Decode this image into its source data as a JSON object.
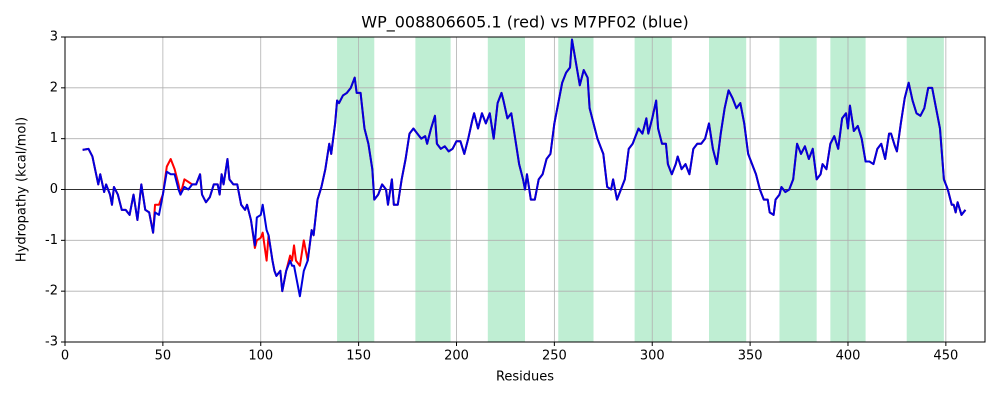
{
  "chart_data": {
    "type": "line",
    "title": "WP_008806605.1 (red) vs M7PF02 (blue)",
    "x_label": "Residues",
    "y_label": "Hydropathy (kcal/mol)",
    "xlim": [
      0,
      470
    ],
    "ylim": [
      -3,
      3
    ],
    "xticks": [
      0,
      50,
      100,
      150,
      200,
      250,
      300,
      350,
      400,
      450
    ],
    "yticks": [
      -3,
      -2,
      -1,
      0,
      1,
      2,
      3
    ],
    "grid": true,
    "span_color": "#bfeed3",
    "spans": [
      [
        139,
        158
      ],
      [
        179,
        197
      ],
      [
        216,
        235
      ],
      [
        252,
        270
      ],
      [
        291,
        310
      ],
      [
        329,
        348
      ],
      [
        365,
        384
      ],
      [
        391,
        409
      ],
      [
        430,
        449
      ]
    ],
    "x": [
      9,
      12,
      14,
      17,
      18,
      20,
      21,
      23,
      24,
      25,
      27,
      29,
      31,
      33,
      35,
      37,
      39,
      41,
      43,
      45,
      46,
      48,
      50,
      52,
      54,
      56,
      58,
      59,
      61,
      63,
      65,
      67,
      69,
      70,
      72,
      74,
      76,
      78,
      79,
      80,
      81,
      83,
      84,
      86,
      88,
      90,
      92,
      93,
      95,
      97,
      98,
      100,
      101,
      103,
      104,
      106,
      107,
      108,
      110,
      111,
      113,
      115,
      116,
      117,
      118,
      120,
      122,
      124,
      126,
      127,
      129,
      131,
      133,
      135,
      136,
      138,
      139,
      140,
      142,
      144,
      146,
      148,
      149,
      151,
      153,
      155,
      157,
      158,
      160,
      162,
      164,
      165,
      167,
      168,
      170,
      172,
      174,
      176,
      178,
      180,
      182,
      184,
      185,
      187,
      189,
      190,
      192,
      194,
      196,
      198,
      200,
      202,
      204,
      206,
      208,
      209,
      211,
      213,
      215,
      217,
      219,
      221,
      223,
      224,
      226,
      228,
      230,
      232,
      234,
      235,
      236,
      238,
      240,
      242,
      244,
      246,
      248,
      250,
      252,
      254,
      256,
      258,
      259,
      261,
      263,
      265,
      267,
      268,
      270,
      272,
      274,
      275,
      277,
      279,
      280,
      282,
      284,
      286,
      288,
      290,
      291,
      293,
      295,
      297,
      298,
      300,
      302,
      303,
      305,
      307,
      308,
      310,
      312,
      313,
      315,
      317,
      319,
      321,
      323,
      325,
      327,
      329,
      331,
      333,
      335,
      337,
      339,
      341,
      343,
      345,
      347,
      349,
      351,
      353,
      355,
      357,
      359,
      360,
      362,
      363,
      365,
      366,
      368,
      370,
      372,
      374,
      376,
      378,
      380,
      382,
      384,
      386,
      387,
      389,
      391,
      393,
      395,
      397,
      399,
      400,
      401,
      403,
      405,
      407,
      409,
      411,
      413,
      415,
      417,
      419,
      421,
      422,
      424,
      425,
      427,
      429,
      431,
      433,
      435,
      437,
      439,
      441,
      443,
      445,
      447,
      449,
      451,
      453,
      454,
      455,
      456,
      458,
      460
    ],
    "series": [
      {
        "color": "#ff0000",
        "values": [
          0.78,
          0.8,
          0.65,
          0.1,
          0.3,
          -0.05,
          0.1,
          -0.1,
          -0.3,
          0.05,
          -0.1,
          -0.4,
          -0.4,
          -0.5,
          -0.1,
          -0.6,
          0.1,
          -0.4,
          -0.45,
          -0.85,
          -0.3,
          -0.3,
          -0.1,
          0.45,
          0.6,
          0.4,
          0.1,
          -0.1,
          0.2,
          0.15,
          0.1,
          0.1,
          0.3,
          -0.1,
          -0.25,
          -0.15,
          0.1,
          0.1,
          -0.1,
          0.3,
          0.1,
          0.6,
          0.2,
          0.1,
          0.1,
          -0.3,
          -0.4,
          -0.3,
          -0.6,
          -1.15,
          -1,
          -0.95,
          -0.85,
          -1.4,
          -0.9,
          -1.4,
          -1.6,
          -1.7,
          -1.6,
          -2,
          -1.6,
          -1.3,
          -1.4,
          -1.1,
          -1.4,
          -1.5,
          -1,
          -1.4,
          -0.8,
          -0.9,
          -0.2,
          0.05,
          0.4,
          0.9,
          0.7,
          1.3,
          1.75,
          1.7,
          1.85,
          1.9,
          2,
          2.2,
          1.9,
          1.9,
          1.2,
          0.9,
          0.4,
          -0.2,
          -0.1,
          0.1,
          0,
          -0.3,
          0.2,
          -0.3,
          -0.3,
          0.2,
          0.6,
          1.1,
          1.2,
          1.1,
          1,
          1.05,
          0.9,
          1.2,
          1.45,
          0.9,
          0.8,
          0.85,
          0.75,
          0.8,
          0.95,
          0.95,
          0.7,
          1,
          1.35,
          1.5,
          1.2,
          1.5,
          1.3,
          1.5,
          1,
          1.7,
          1.9,
          1.75,
          1.4,
          1.5,
          1,
          0.5,
          0.2,
          0,
          0.3,
          -0.2,
          -0.2,
          0.2,
          0.3,
          0.6,
          0.7,
          1.3,
          1.7,
          2.1,
          2.3,
          2.4,
          2.95,
          2.5,
          2.05,
          2.35,
          2.2,
          1.6,
          1.3,
          1,
          0.8,
          0.7,
          0.05,
          0,
          0.2,
          -0.2,
          0,
          0.2,
          0.8,
          0.9,
          1,
          1.2,
          1.1,
          1.4,
          1.1,
          1.4,
          1.75,
          1.2,
          0.9,
          0.9,
          0.5,
          0.3,
          0.5,
          0.65,
          0.4,
          0.5,
          0.3,
          0.8,
          0.9,
          0.9,
          1,
          1.3,
          0.8,
          0.5,
          1.1,
          1.6,
          1.95,
          1.8,
          1.6,
          1.7,
          1.3,
          0.7,
          0.5,
          0.3,
          0,
          -0.2,
          -0.2,
          -0.45,
          -0.5,
          -0.2,
          -0.1,
          0.05,
          -0.05,
          0,
          0.2,
          0.9,
          0.7,
          0.85,
          0.6,
          0.8,
          0.2,
          0.3,
          0.5,
          0.4,
          0.9,
          1.05,
          0.8,
          1.4,
          1.5,
          1.2,
          1.65,
          1.15,
          1.25,
          1,
          0.55,
          0.55,
          0.5,
          0.8,
          0.9,
          0.6,
          1.1,
          1.1,
          0.85,
          0.75,
          1.3,
          1.8,
          2.1,
          1.75,
          1.5,
          1.45,
          1.6,
          2,
          2,
          1.6,
          1.2,
          0.2,
          0,
          -0.3,
          -0.3,
          -0.45,
          -0.25,
          -0.5,
          -0.4
        ]
      },
      {
        "color": "#0000dd",
        "values": [
          0.78,
          0.8,
          0.65,
          0.1,
          0.3,
          -0.05,
          0.1,
          -0.1,
          -0.3,
          0.05,
          -0.1,
          -0.4,
          -0.4,
          -0.5,
          -0.1,
          -0.6,
          0.1,
          -0.4,
          -0.45,
          -0.85,
          -0.45,
          -0.5,
          -0.1,
          0.35,
          0.3,
          0.3,
          0,
          -0.1,
          0.05,
          0,
          0.1,
          0.1,
          0.3,
          -0.1,
          -0.25,
          -0.15,
          0.1,
          0.1,
          -0.1,
          0.3,
          0.1,
          0.6,
          0.2,
          0.1,
          0.1,
          -0.3,
          -0.4,
          -0.3,
          -0.6,
          -1.1,
          -0.55,
          -0.5,
          -0.3,
          -0.8,
          -0.9,
          -1.4,
          -1.6,
          -1.7,
          -1.6,
          -2,
          -1.6,
          -1.4,
          -1.5,
          -1.5,
          -1.7,
          -2.1,
          -1.6,
          -1.4,
          -0.8,
          -0.9,
          -0.2,
          0.05,
          0.4,
          0.9,
          0.7,
          1.3,
          1.75,
          1.7,
          1.85,
          1.9,
          2,
          2.2,
          1.9,
          1.9,
          1.2,
          0.9,
          0.4,
          -0.2,
          -0.1,
          0.1,
          0,
          -0.3,
          0.2,
          -0.3,
          -0.3,
          0.2,
          0.6,
          1.1,
          1.2,
          1.1,
          1,
          1.05,
          0.9,
          1.2,
          1.45,
          0.9,
          0.8,
          0.85,
          0.75,
          0.8,
          0.95,
          0.95,
          0.7,
          1,
          1.35,
          1.5,
          1.2,
          1.5,
          1.3,
          1.5,
          1,
          1.7,
          1.9,
          1.75,
          1.4,
          1.5,
          1,
          0.5,
          0.2,
          0,
          0.3,
          -0.2,
          -0.2,
          0.2,
          0.3,
          0.6,
          0.7,
          1.3,
          1.7,
          2.1,
          2.3,
          2.4,
          2.95,
          2.5,
          2.05,
          2.35,
          2.2,
          1.6,
          1.3,
          1,
          0.8,
          0.7,
          0.05,
          0,
          0.2,
          -0.2,
          0,
          0.2,
          0.8,
          0.9,
          1,
          1.2,
          1.1,
          1.4,
          1.1,
          1.4,
          1.75,
          1.2,
          0.9,
          0.9,
          0.5,
          0.3,
          0.5,
          0.65,
          0.4,
          0.5,
          0.3,
          0.8,
          0.9,
          0.9,
          1,
          1.3,
          0.8,
          0.5,
          1.1,
          1.6,
          1.95,
          1.8,
          1.6,
          1.7,
          1.3,
          0.7,
          0.5,
          0.3,
          0,
          -0.2,
          -0.2,
          -0.45,
          -0.5,
          -0.2,
          -0.1,
          0.05,
          -0.05,
          0,
          0.2,
          0.9,
          0.7,
          0.85,
          0.6,
          0.8,
          0.2,
          0.3,
          0.5,
          0.4,
          0.9,
          1.05,
          0.8,
          1.4,
          1.5,
          1.2,
          1.65,
          1.15,
          1.25,
          1,
          0.55,
          0.55,
          0.5,
          0.8,
          0.9,
          0.6,
          1.1,
          1.1,
          0.85,
          0.75,
          1.3,
          1.8,
          2.1,
          1.75,
          1.5,
          1.45,
          1.6,
          2,
          2,
          1.6,
          1.2,
          0.2,
          0,
          -0.3,
          -0.3,
          -0.45,
          -0.25,
          -0.5,
          -0.4
        ]
      }
    ]
  }
}
